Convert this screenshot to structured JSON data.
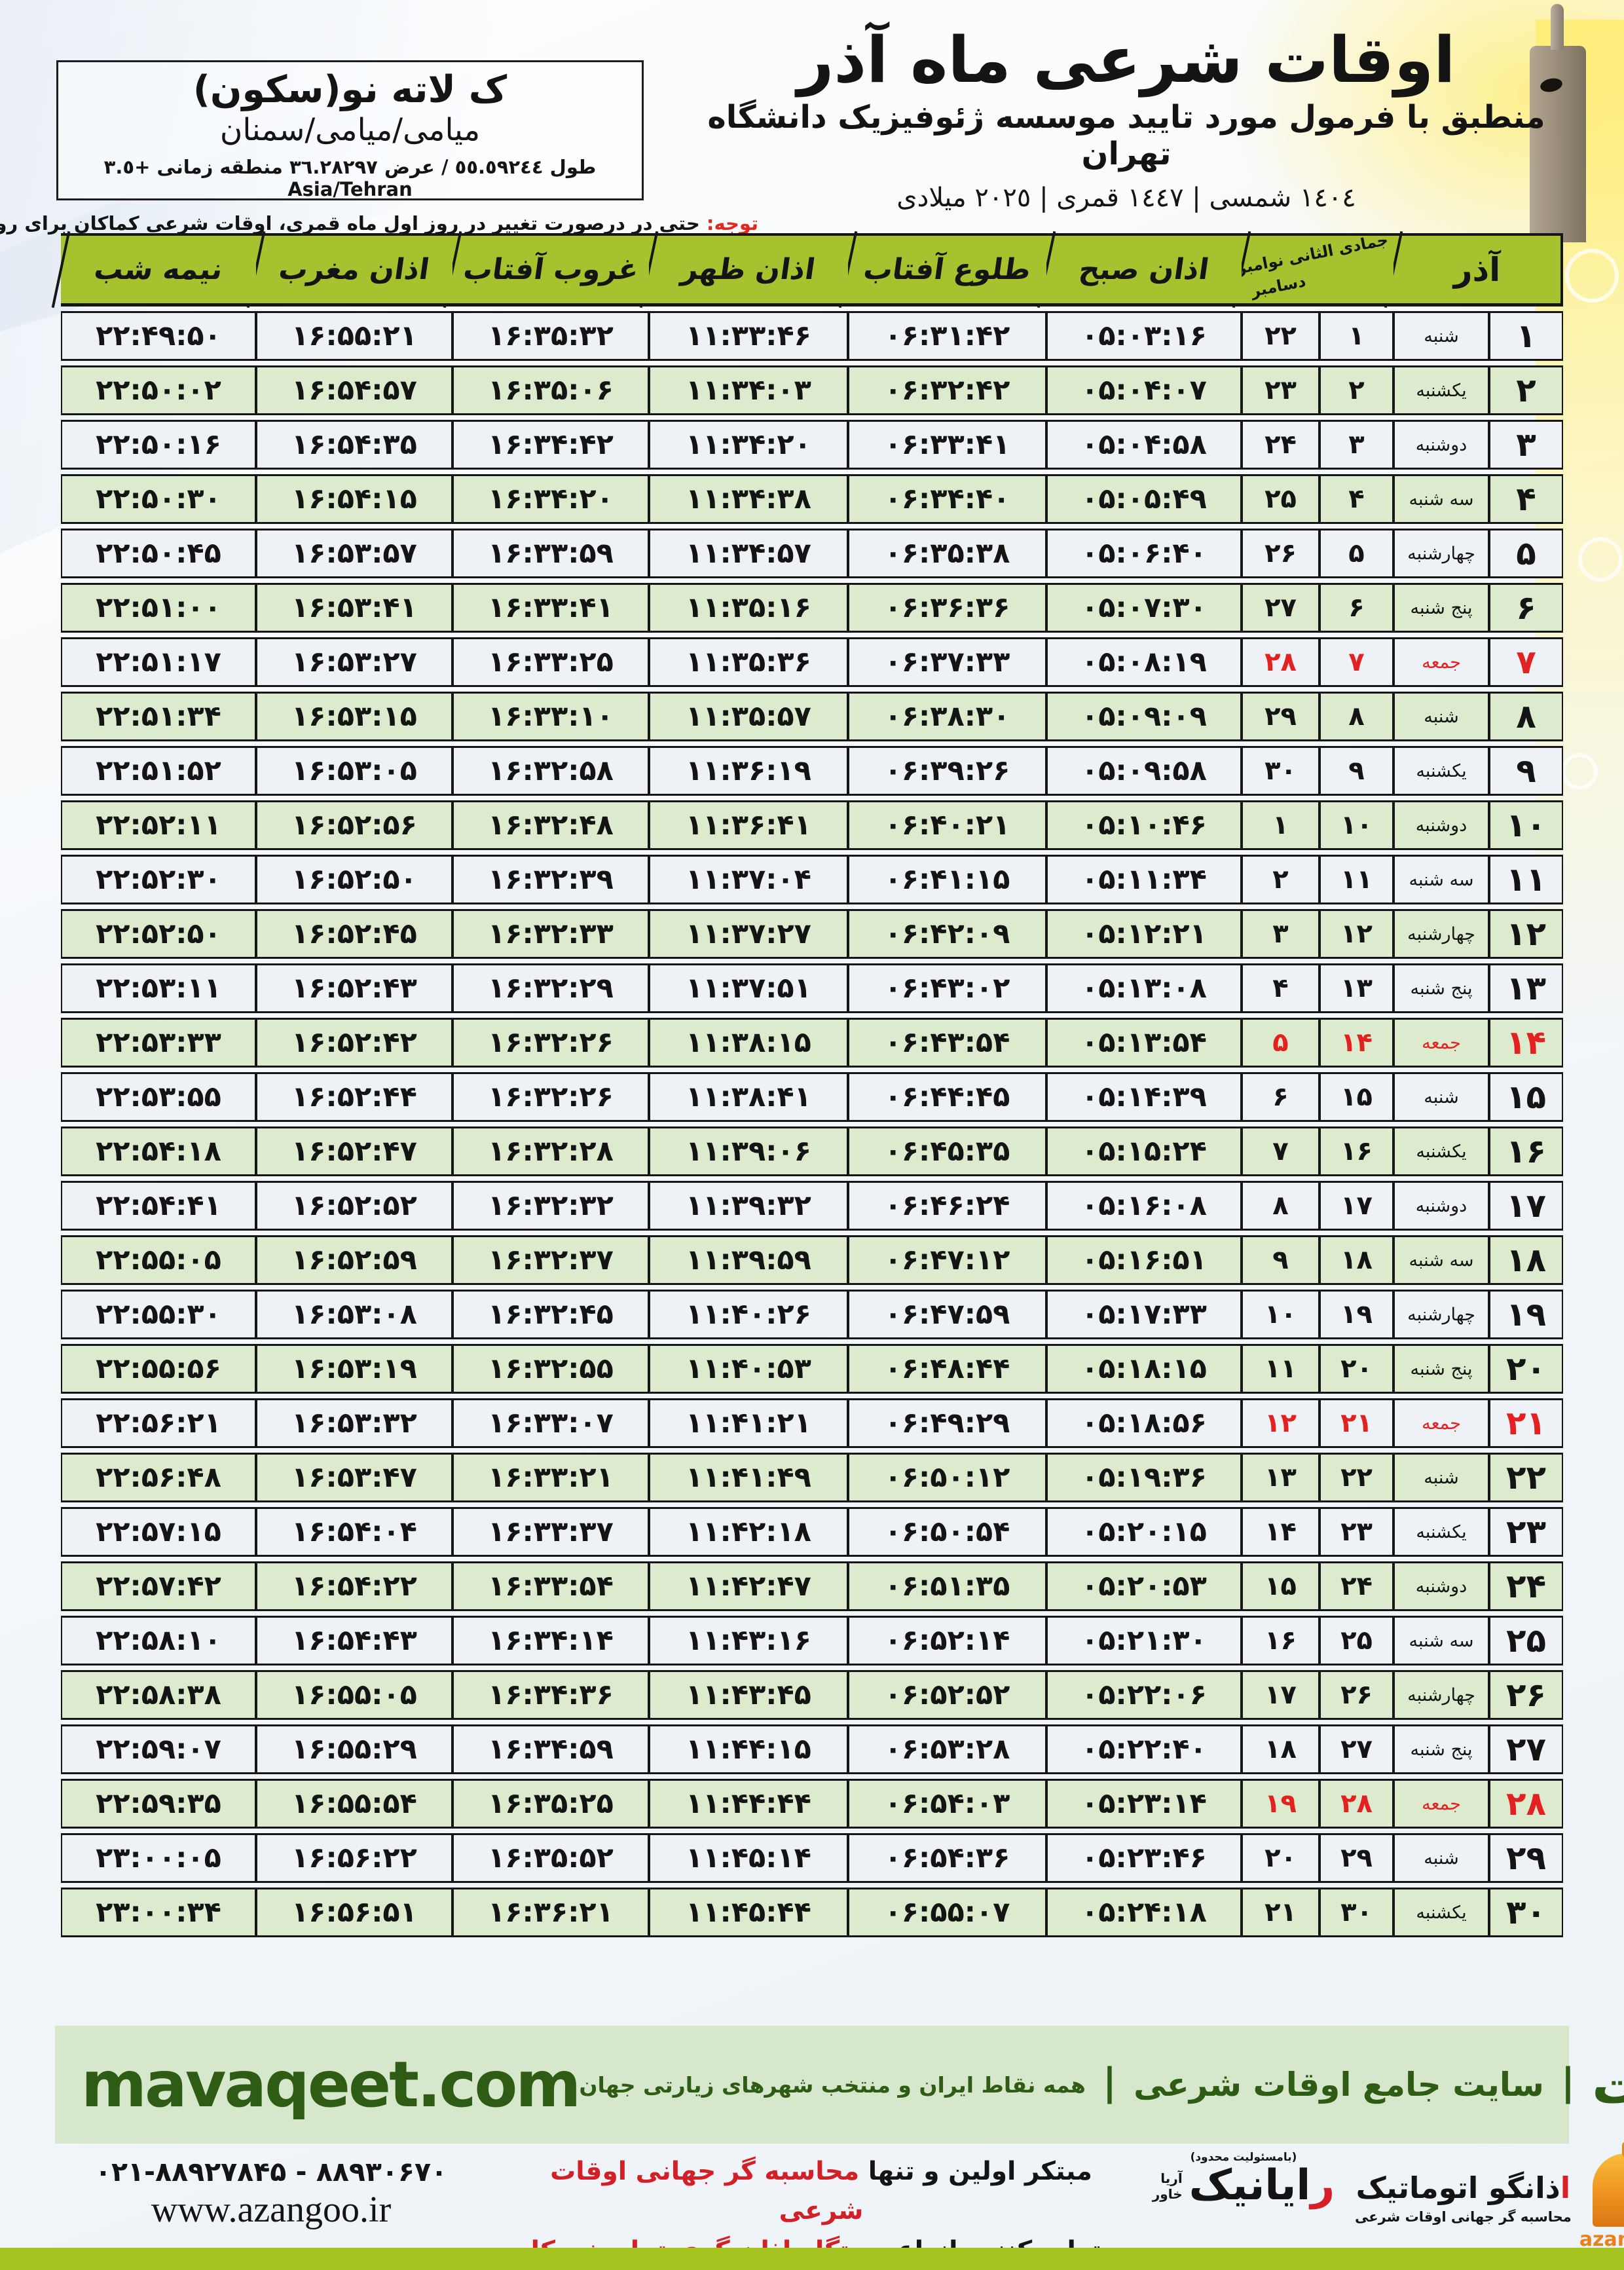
{
  "header": {
    "title": "اوقات شرعی ماه آذر",
    "subtitle": "منطبق با فرمول مورد تایید موسسه ژئوفیزیک دانشگاه تهران",
    "dates": "١٤٠٤ شمسی | ١٤٤٧ قمری | ٢٠٢٥ میلادی"
  },
  "location": {
    "name": "ک لاته نو(سکون)",
    "region": "میامی/میامی/سمنان",
    "coords": "طول ٥٥.٥٩٢٤٤ / عرض ٣٦.٢٨٢٩٧ منطقه زمانی ‎+٣.٥‎ Asia/Tehran"
  },
  "notice": {
    "label": "توجه:",
    "text": " حتی در درصورت تغییر در روز اول ماه قمری، اوقات شرعی کماکان برای روزهای شمسی و میلادی معتبر است."
  },
  "table": {
    "month_label": "آذر",
    "diagonal": {
      "top": "جمادی الثانی نوامبر",
      "bottom": "دسامبر"
    },
    "columns": [
      {
        "key": "fajr",
        "label": "اذان صبح"
      },
      {
        "key": "rise",
        "label": "طلوع آفتاب"
      },
      {
        "key": "noon",
        "label": "اذان ظهر"
      },
      {
        "key": "set",
        "label": "غروب آفتاب"
      },
      {
        "key": "maghrib",
        "label": "اذان مغرب"
      },
      {
        "key": "mid",
        "label": "نیمه شب"
      }
    ],
    "rows": [
      {
        "d": 1,
        "w": "شنبه",
        "g": 22,
        "h": 1,
        "fri": false,
        "fajr": "05:03:16",
        "rise": "06:31:42",
        "noon": "11:33:46",
        "set": "16:35:32",
        "maghrib": "16:55:21",
        "mid": "22:49:50"
      },
      {
        "d": 2,
        "w": "یکشنبه",
        "g": 23,
        "h": 2,
        "fri": false,
        "fajr": "05:04:07",
        "rise": "06:32:42",
        "noon": "11:34:03",
        "set": "16:35:06",
        "maghrib": "16:54:57",
        "mid": "22:50:02"
      },
      {
        "d": 3,
        "w": "دوشنبه",
        "g": 24,
        "h": 3,
        "fri": false,
        "fajr": "05:04:58",
        "rise": "06:33:41",
        "noon": "11:34:20",
        "set": "16:34:42",
        "maghrib": "16:54:35",
        "mid": "22:50:16"
      },
      {
        "d": 4,
        "w": "سه شنبه",
        "g": 25,
        "h": 4,
        "fri": false,
        "fajr": "05:05:49",
        "rise": "06:34:40",
        "noon": "11:34:38",
        "set": "16:34:20",
        "maghrib": "16:54:15",
        "mid": "22:50:30"
      },
      {
        "d": 5,
        "w": "چهارشنبه",
        "g": 26,
        "h": 5,
        "fri": false,
        "fajr": "05:06:40",
        "rise": "06:35:38",
        "noon": "11:34:57",
        "set": "16:33:59",
        "maghrib": "16:53:57",
        "mid": "22:50:45"
      },
      {
        "d": 6,
        "w": "پنج شنبه",
        "g": 27,
        "h": 6,
        "fri": false,
        "fajr": "05:07:30",
        "rise": "06:36:36",
        "noon": "11:35:16",
        "set": "16:33:41",
        "maghrib": "16:53:41",
        "mid": "22:51:00"
      },
      {
        "d": 7,
        "w": "جمعه",
        "g": 28,
        "h": 7,
        "fri": true,
        "fajr": "05:08:19",
        "rise": "06:37:33",
        "noon": "11:35:36",
        "set": "16:33:25",
        "maghrib": "16:53:27",
        "mid": "22:51:17"
      },
      {
        "d": 8,
        "w": "شنبه",
        "g": 29,
        "h": 8,
        "fri": false,
        "fajr": "05:09:09",
        "rise": "06:38:30",
        "noon": "11:35:57",
        "set": "16:33:10",
        "maghrib": "16:53:15",
        "mid": "22:51:34"
      },
      {
        "d": 9,
        "w": "یکشنبه",
        "g": 30,
        "h": 9,
        "fri": false,
        "fajr": "05:09:58",
        "rise": "06:39:26",
        "noon": "11:36:19",
        "set": "16:32:58",
        "maghrib": "16:53:05",
        "mid": "22:51:52"
      },
      {
        "d": 10,
        "w": "دوشنبه",
        "g": 1,
        "h": 10,
        "fri": false,
        "fajr": "05:10:46",
        "rise": "06:40:21",
        "noon": "11:36:41",
        "set": "16:32:48",
        "maghrib": "16:52:56",
        "mid": "22:52:11"
      },
      {
        "d": 11,
        "w": "سه شنبه",
        "g": 2,
        "h": 11,
        "fri": false,
        "fajr": "05:11:34",
        "rise": "06:41:15",
        "noon": "11:37:04",
        "set": "16:32:39",
        "maghrib": "16:52:50",
        "mid": "22:52:30"
      },
      {
        "d": 12,
        "w": "چهارشنبه",
        "g": 3,
        "h": 12,
        "fri": false,
        "fajr": "05:12:21",
        "rise": "06:42:09",
        "noon": "11:37:27",
        "set": "16:32:33",
        "maghrib": "16:52:45",
        "mid": "22:52:50"
      },
      {
        "d": 13,
        "w": "پنج شنبه",
        "g": 4,
        "h": 13,
        "fri": false,
        "fajr": "05:13:08",
        "rise": "06:43:02",
        "noon": "11:37:51",
        "set": "16:32:29",
        "maghrib": "16:52:43",
        "mid": "22:53:11"
      },
      {
        "d": 14,
        "w": "جمعه",
        "g": 5,
        "h": 14,
        "fri": true,
        "fajr": "05:13:54",
        "rise": "06:43:54",
        "noon": "11:38:15",
        "set": "16:32:26",
        "maghrib": "16:52:42",
        "mid": "22:53:33"
      },
      {
        "d": 15,
        "w": "شنبه",
        "g": 6,
        "h": 15,
        "fri": false,
        "fajr": "05:14:39",
        "rise": "06:44:45",
        "noon": "11:38:41",
        "set": "16:32:26",
        "maghrib": "16:52:44",
        "mid": "22:53:55"
      },
      {
        "d": 16,
        "w": "یکشنبه",
        "g": 7,
        "h": 16,
        "fri": false,
        "fajr": "05:15:24",
        "rise": "06:45:35",
        "noon": "11:39:06",
        "set": "16:32:28",
        "maghrib": "16:52:47",
        "mid": "22:54:18"
      },
      {
        "d": 17,
        "w": "دوشنبه",
        "g": 8,
        "h": 17,
        "fri": false,
        "fajr": "05:16:08",
        "rise": "06:46:24",
        "noon": "11:39:32",
        "set": "16:32:32",
        "maghrib": "16:52:52",
        "mid": "22:54:41"
      },
      {
        "d": 18,
        "w": "سه شنبه",
        "g": 9,
        "h": 18,
        "fri": false,
        "fajr": "05:16:51",
        "rise": "06:47:12",
        "noon": "11:39:59",
        "set": "16:32:37",
        "maghrib": "16:52:59",
        "mid": "22:55:05"
      },
      {
        "d": 19,
        "w": "چهارشنبه",
        "g": 10,
        "h": 19,
        "fri": false,
        "fajr": "05:17:33",
        "rise": "06:47:59",
        "noon": "11:40:26",
        "set": "16:32:45",
        "maghrib": "16:53:08",
        "mid": "22:55:30"
      },
      {
        "d": 20,
        "w": "پنج شنبه",
        "g": 11,
        "h": 20,
        "fri": false,
        "fajr": "05:18:15",
        "rise": "06:48:44",
        "noon": "11:40:53",
        "set": "16:32:55",
        "maghrib": "16:53:19",
        "mid": "22:55:56"
      },
      {
        "d": 21,
        "w": "جمعه",
        "g": 12,
        "h": 21,
        "fri": true,
        "fajr": "05:18:56",
        "rise": "06:49:29",
        "noon": "11:41:21",
        "set": "16:33:07",
        "maghrib": "16:53:32",
        "mid": "22:56:21"
      },
      {
        "d": 22,
        "w": "شنبه",
        "g": 13,
        "h": 22,
        "fri": false,
        "fajr": "05:19:36",
        "rise": "06:50:12",
        "noon": "11:41:49",
        "set": "16:33:21",
        "maghrib": "16:53:47",
        "mid": "22:56:48"
      },
      {
        "d": 23,
        "w": "یکشنبه",
        "g": 14,
        "h": 23,
        "fri": false,
        "fajr": "05:20:15",
        "rise": "06:50:54",
        "noon": "11:42:18",
        "set": "16:33:37",
        "maghrib": "16:54:04",
        "mid": "22:57:15"
      },
      {
        "d": 24,
        "w": "دوشنبه",
        "g": 15,
        "h": 24,
        "fri": false,
        "fajr": "05:20:53",
        "rise": "06:51:35",
        "noon": "11:42:47",
        "set": "16:33:54",
        "maghrib": "16:54:22",
        "mid": "22:57:42"
      },
      {
        "d": 25,
        "w": "سه شنبه",
        "g": 16,
        "h": 25,
        "fri": false,
        "fajr": "05:21:30",
        "rise": "06:52:14",
        "noon": "11:43:16",
        "set": "16:34:14",
        "maghrib": "16:54:43",
        "mid": "22:58:10"
      },
      {
        "d": 26,
        "w": "چهارشنبه",
        "g": 17,
        "h": 26,
        "fri": false,
        "fajr": "05:22:06",
        "rise": "06:52:52",
        "noon": "11:43:45",
        "set": "16:34:36",
        "maghrib": "16:55:05",
        "mid": "22:58:38"
      },
      {
        "d": 27,
        "w": "پنج شنبه",
        "g": 18,
        "h": 27,
        "fri": false,
        "fajr": "05:22:40",
        "rise": "06:53:28",
        "noon": "11:44:15",
        "set": "16:34:59",
        "maghrib": "16:55:29",
        "mid": "22:59:07"
      },
      {
        "d": 28,
        "w": "جمعه",
        "g": 19,
        "h": 28,
        "fri": true,
        "fajr": "05:23:14",
        "rise": "06:54:03",
        "noon": "11:44:44",
        "set": "16:35:25",
        "maghrib": "16:55:54",
        "mid": "22:59:35"
      },
      {
        "d": 29,
        "w": "شنبه",
        "g": 20,
        "h": 29,
        "fri": false,
        "fajr": "05:23:46",
        "rise": "06:54:36",
        "noon": "11:45:14",
        "set": "16:35:52",
        "maghrib": "16:56:22",
        "mid": "23:00:05"
      },
      {
        "d": 30,
        "w": "یکشنبه",
        "g": 21,
        "h": 30,
        "fri": false,
        "fajr": "05:24:18",
        "rise": "06:55:07",
        "noon": "11:45:44",
        "set": "16:36:21",
        "maghrib": "16:56:51",
        "mid": "23:00:34"
      }
    ]
  },
  "footer_band": {
    "url": "mavaqeet.com",
    "brand": "مــواقیت",
    "sep": "|",
    "site_desc": "سایت جامع اوقات شرعی",
    "coverage": "همه نقاط ایران و منتخب شهرهای زیارتی جهان"
  },
  "contacts": {
    "phone": "۰۲۱-۸۸۹۲۷۸۴۵ - ۸۸۹۳۰۶۷۰",
    "website": "www.azangoo.ir",
    "ad_line1_black": "مبتکر اولین و تنها ",
    "ad_line1_red": "محاسبه گر جهانی اوقات شرعی",
    "ad_line2_black": "و تولید کننده انواع ",
    "ad_line2_red": "دستگاه اذان گوی تمام خودکار ماهواره ای",
    "rayanik_tiny": "(بامسئولیت محدود)",
    "rayanik_first": "ر",
    "rayanik_rest": "ایانیک",
    "rayanik_side_top": "آریا",
    "rayanik_side_bottom": "خاور",
    "azangoo_first": "ا",
    "azangoo_rest": "ذانگو اتوماتیک",
    "azangoo_tagline": "محاسبه گر جهانی اوقات شرعی",
    "azangoo_latin": "azangoo"
  },
  "colors": {
    "header_green": "#a6c32f",
    "row_light": "#eef1f6",
    "row_green": "#dcebcd",
    "friday_red": "#e32121",
    "notice_red": "#e52620",
    "band_green": "#d6e7cb",
    "brand_dark_green": "#2e5c15",
    "bottom_bar_green": "#a6c41f",
    "logo_orange": "#e8881c"
  }
}
